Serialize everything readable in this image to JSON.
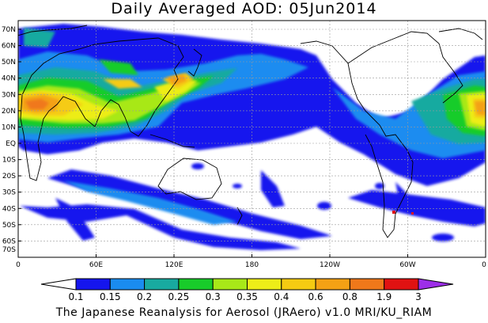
{
  "title": "Daily Averaged AOD: 05Jun2014",
  "footer": "The Japanese Reanalysis for Aerosol (JRAero) v1.0 MRI/KU_RIAM",
  "lat_labels": [
    "70N",
    "60N",
    "50N",
    "40N",
    "30N",
    "20N",
    "10N",
    "EQ",
    "10S",
    "20S",
    "30S",
    "40S",
    "50S",
    "60S",
    "70S"
  ],
  "lon_labels": [
    "0",
    "60E",
    "120E",
    "180",
    "120W",
    "60W",
    "0"
  ],
  "colorbar": {
    "labels": [
      "0.1",
      "0.15",
      "0.2",
      "0.25",
      "0.3",
      "0.35",
      "0.4",
      "0.6",
      "0.8",
      "1.9",
      "3"
    ],
    "colors": [
      "#ffffff",
      "#1515ee",
      "#1a8cf0",
      "#18aaa0",
      "#18cc2a",
      "#a8e818",
      "#eded18",
      "#f5cb12",
      "#f4a114",
      "#f0781a",
      "#e01212",
      "#9d2ee8"
    ]
  },
  "colors": {
    "ocean": "#ffffff",
    "land_outline": "#000000",
    "grid": "#9a9a9a"
  }
}
